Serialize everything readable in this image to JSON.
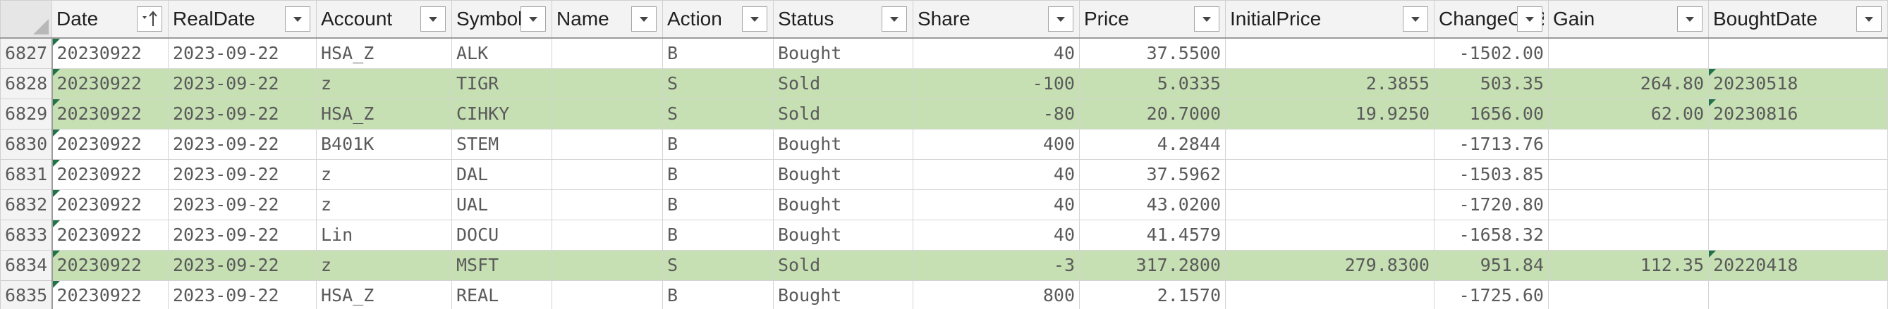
{
  "sheet": {
    "columns": [
      {
        "key": "date",
        "label": "Date",
        "sort": "ascending"
      },
      {
        "key": "realdate",
        "label": "RealDate"
      },
      {
        "key": "account",
        "label": "Account"
      },
      {
        "key": "symbol",
        "label": "Symbol"
      },
      {
        "key": "name",
        "label": "Name"
      },
      {
        "key": "action",
        "label": "Action"
      },
      {
        "key": "status",
        "label": "Status"
      },
      {
        "key": "share",
        "label": "Share"
      },
      {
        "key": "price",
        "label": "Price"
      },
      {
        "key": "initialprice",
        "label": "InitialPrice"
      },
      {
        "key": "changeonbalance",
        "label": "ChangeOnBalance"
      },
      {
        "key": "gain",
        "label": "Gain"
      },
      {
        "key": "boughtdate",
        "label": "BoughtDate"
      }
    ],
    "rows": [
      {
        "row": "6827",
        "highlight": false,
        "date": "20230922",
        "realdate": "2023-09-22",
        "account": "HSA_Z",
        "symbol": "ALK",
        "name": "",
        "action": "B",
        "status": "Bought",
        "share": "40",
        "price": "37.5500",
        "initialprice": "",
        "changeonbalance": "-1502.00",
        "gain": "",
        "boughtdate": ""
      },
      {
        "row": "6828",
        "highlight": true,
        "date": "20230922",
        "realdate": "2023-09-22",
        "account": "z",
        "symbol": "TIGR",
        "name": "",
        "action": "S",
        "status": "Sold",
        "share": "-100",
        "price": "5.0335",
        "initialprice": "2.3855",
        "changeonbalance": "503.35",
        "gain": "264.80",
        "boughtdate": "20230518"
      },
      {
        "row": "6829",
        "highlight": true,
        "date": "20230922",
        "realdate": "2023-09-22",
        "account": "HSA_Z",
        "symbol": "CIHKY",
        "name": "",
        "action": "S",
        "status": "Sold",
        "share": "-80",
        "price": "20.7000",
        "initialprice": "19.9250",
        "changeonbalance": "1656.00",
        "gain": "62.00",
        "boughtdate": "20230816"
      },
      {
        "row": "6830",
        "highlight": false,
        "date": "20230922",
        "realdate": "2023-09-22",
        "account": "B401K",
        "symbol": "STEM",
        "name": "",
        "action": "B",
        "status": "Bought",
        "share": "400",
        "price": "4.2844",
        "initialprice": "",
        "changeonbalance": "-1713.76",
        "gain": "",
        "boughtdate": ""
      },
      {
        "row": "6831",
        "highlight": false,
        "date": "20230922",
        "realdate": "2023-09-22",
        "account": "z",
        "symbol": "DAL",
        "name": "",
        "action": "B",
        "status": "Bought",
        "share": "40",
        "price": "37.5962",
        "initialprice": "",
        "changeonbalance": "-1503.85",
        "gain": "",
        "boughtdate": ""
      },
      {
        "row": "6832",
        "highlight": false,
        "date": "20230922",
        "realdate": "2023-09-22",
        "account": "z",
        "symbol": "UAL",
        "name": "",
        "action": "B",
        "status": "Bought",
        "share": "40",
        "price": "43.0200",
        "initialprice": "",
        "changeonbalance": "-1720.80",
        "gain": "",
        "boughtdate": ""
      },
      {
        "row": "6833",
        "highlight": false,
        "date": "20230922",
        "realdate": "2023-09-22",
        "account": "Lin",
        "symbol": "DOCU",
        "name": "",
        "action": "B",
        "status": "Bought",
        "share": "40",
        "price": "41.4579",
        "initialprice": "",
        "changeonbalance": "-1658.32",
        "gain": "",
        "boughtdate": ""
      },
      {
        "row": "6834",
        "highlight": true,
        "date": "20230922",
        "realdate": "2023-09-22",
        "account": "z",
        "symbol": "MSFT",
        "name": "",
        "action": "S",
        "status": "Sold",
        "share": "-3",
        "price": "317.2800",
        "initialprice": "279.8300",
        "changeonbalance": "951.84",
        "gain": "112.35",
        "boughtdate": "20220418"
      },
      {
        "row": "6835",
        "highlight": false,
        "date": "20230922",
        "realdate": "2023-09-22",
        "account": "HSA_Z",
        "symbol": "REAL",
        "name": "",
        "action": "B",
        "status": "Bought",
        "share": "800",
        "price": "2.1570",
        "initialprice": "",
        "changeonbalance": "-1725.60",
        "gain": "",
        "boughtdate": ""
      }
    ]
  },
  "colors": {
    "highlight": "#c6e0b4",
    "header_bg": "#f3f3f3",
    "error_flag": "#217346"
  },
  "icons": {
    "filter": "dropdown-arrow-icon",
    "sort": "sort-ascending-icon",
    "corner": "select-all-icon"
  }
}
